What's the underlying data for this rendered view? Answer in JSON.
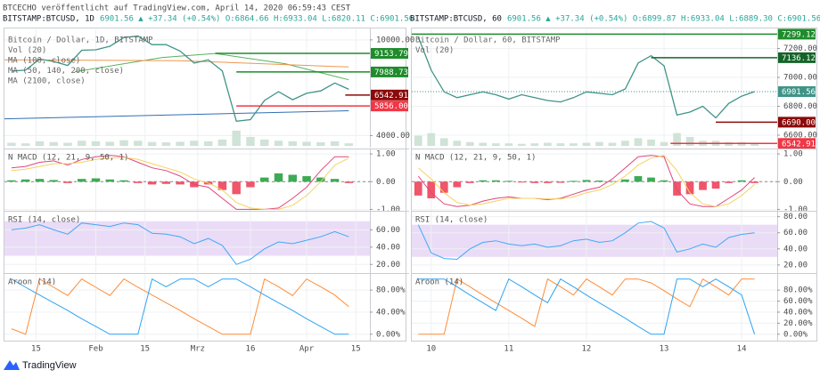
{
  "header": {
    "publisher": "BTCECHO veröffentlicht auf TradingView.com, April 14, 2020 06:59:43 CEST"
  },
  "footer": {
    "brand": "TradingView"
  },
  "chart_data": [
    {
      "type": "line",
      "title": "BITSTAMP:BTCUSD, 1D",
      "quote": "6901.56 ▲ +37.34 (+0.54%) O:6864.66 H:6933.04 L:6820.11 C:6901.56",
      "legend": [
        "Bitcoin / Dollar, 1D, BITSTAMP",
        "Vol (20)",
        "MA (100, close)",
        "MA (50, 140, 200, close)",
        "MA (2100, close)"
      ],
      "xlim": [
        0,
        104
      ],
      "x": [
        2,
        6,
        10,
        14,
        18,
        22,
        26,
        30,
        34,
        38,
        42,
        46,
        50,
        54,
        58,
        62,
        66,
        70,
        74,
        78,
        82,
        86,
        90,
        94,
        98
      ],
      "ylim": [
        3300,
        10550
      ],
      "yticks": [
        {
          "value": 10000,
          "label": "10000.00"
        },
        {
          "value": 4000,
          "label": "4000.00"
        }
      ],
      "series": [
        {
          "color": "#3f9488",
          "values": [
            8050,
            8100,
            8800,
            8650,
            8400,
            9350,
            9380,
            9600,
            10150,
            10250,
            9700,
            9700,
            9300,
            8550,
            8750,
            8050,
            4900,
            5000,
            6200,
            6750,
            6250,
            6650,
            6800,
            7300,
            6901.56
          ]
        }
      ],
      "volume": {
        "color": "#cfe3d6",
        "ylim": [
          0,
          100
        ],
        "values": [
          12,
          10,
          18,
          15,
          12,
          20,
          18,
          16,
          22,
          20,
          15,
          14,
          16,
          20,
          18,
          25,
          60,
          35,
          25,
          20,
          18,
          16,
          14,
          18,
          10
        ]
      },
      "ma": [
        {
          "color": "#2f6fb3",
          "x": [
            0,
            98
          ],
          "values": [
            5050,
            5560
          ]
        },
        {
          "color": "#58b05a",
          "x": [
            20,
            45,
            60,
            80,
            98
          ],
          "values": [
            8000,
            8900,
            9150,
            8500,
            7500
          ]
        },
        {
          "color": "#f0964c",
          "x": [
            0,
            50,
            98
          ],
          "values": [
            8750,
            8700,
            8300
          ]
        }
      ],
      "levels": [
        {
          "value": 9153.79,
          "color": "#1e8c2b",
          "from": 60
        },
        {
          "value": 7988.73,
          "color": "#1e8c2b",
          "from": 66
        },
        {
          "value": 6542.91,
          "color": "#8b0a0a",
          "from": 97
        },
        {
          "value": 5856,
          "label": "5856.00",
          "color": "#f23645",
          "from": 66
        }
      ]
    },
    {
      "type": "combo",
      "title": "N MACD (12, 21, 9, 50, 1)",
      "ylim": [
        -1.05,
        1.1
      ],
      "yticks": [
        {
          "value": 1,
          "label": "1.00"
        },
        {
          "value": 0,
          "label": "0.00"
        },
        {
          "value": -1,
          "label": "-1.00"
        }
      ],
      "histogram": {
        "up_color": "#3eaa55",
        "down_color": "#f0556a",
        "values": [
          0.05,
          0.08,
          0.1,
          0.06,
          -0.05,
          0.1,
          0.12,
          0.08,
          0.05,
          -0.05,
          -0.1,
          -0.08,
          -0.1,
          -0.2,
          -0.1,
          -0.3,
          -0.45,
          -0.2,
          0.15,
          0.3,
          0.25,
          0.2,
          0.15,
          0.1,
          -0.05
        ]
      },
      "series": [
        {
          "color": "#e0457b",
          "values": [
            0.5,
            0.55,
            0.7,
            0.75,
            0.6,
            0.8,
            0.9,
            0.95,
            0.9,
            0.7,
            0.5,
            0.4,
            0.2,
            -0.1,
            -0.2,
            -0.6,
            -1,
            -1,
            -1,
            -0.95,
            -0.6,
            -0.2,
            0.4,
            0.9,
            0.9
          ]
        },
        {
          "color": "#f5d262",
          "values": [
            0.4,
            0.45,
            0.55,
            0.65,
            0.65,
            0.7,
            0.8,
            0.85,
            0.88,
            0.8,
            0.65,
            0.5,
            0.35,
            0.1,
            -0.05,
            -0.3,
            -0.75,
            -0.95,
            -1,
            -1,
            -0.85,
            -0.5,
            0,
            0.6,
            0.85
          ]
        }
      ]
    },
    {
      "type": "line",
      "title": "RSI (14, close)",
      "ylim": [
        11,
        79
      ],
      "band": [
        30,
        70
      ],
      "band_color": "#eadcf7",
      "yticks": [
        {
          "value": 60,
          "label": "60.00"
        },
        {
          "value": 40,
          "label": "40.00"
        },
        {
          "value": 20,
          "label": "20.00"
        }
      ],
      "series": [
        {
          "color": "#3fa9f5",
          "values": [
            60,
            62,
            66,
            60,
            55,
            68,
            66,
            64,
            68,
            66,
            56,
            55,
            52,
            44,
            50,
            42,
            20,
            26,
            38,
            46,
            44,
            48,
            52,
            58,
            52
          ]
        }
      ]
    },
    {
      "type": "line",
      "title": "Aroon (14)",
      "ylim": [
        -10,
        106
      ],
      "yticks": [
        {
          "value": 80,
          "label": "80.00%"
        },
        {
          "value": 40,
          "label": "40.00%"
        },
        {
          "value": 0,
          "label": "0.00%"
        }
      ],
      "xticks": [
        {
          "value": 9,
          "label": "15"
        },
        {
          "value": 26,
          "label": "Feb"
        },
        {
          "value": 40,
          "label": "15"
        },
        {
          "value": 55,
          "label": "Mrz"
        },
        {
          "value": 70,
          "label": "16"
        },
        {
          "value": 86,
          "label": "Apr"
        },
        {
          "value": 100,
          "label": "15"
        }
      ],
      "series": [
        {
          "color": "#ff8c38",
          "values": [
            10,
            0,
            100,
            85,
            70,
            100,
            85,
            70,
            100,
            85,
            71,
            57,
            43,
            28,
            14,
            0,
            0,
            0,
            100,
            86,
            70,
            100,
            86,
            71,
            50
          ]
        },
        {
          "color": "#2ea3f2",
          "values": [
            100,
            85,
            71,
            57,
            43,
            28,
            14,
            0,
            0,
            0,
            100,
            86,
            100,
            100,
            86,
            100,
            100,
            86,
            71,
            57,
            43,
            28,
            14,
            0,
            0
          ]
        }
      ]
    },
    {
      "type": "line",
      "title": "BITSTAMP:BTCUSD, 60",
      "quote": "6901.56 ▲ +37.34 (+0.54%) O:6899.87 H:6933.04 L:6889.30 C:6901.56",
      "legend": [
        "Bitcoin / Dollar, 60, BITSTAMP",
        "Vol (20)"
      ],
      "xlim": [
        -6,
        107
      ],
      "x": [
        -4,
        0,
        4,
        8,
        12,
        16,
        20,
        24,
        28,
        32,
        36,
        40,
        44,
        48,
        52,
        56,
        60,
        64,
        68,
        72,
        76,
        80,
        84,
        88,
        92,
        96,
        100
      ],
      "ylim": [
        6520,
        7320
      ],
      "yticks": [
        {
          "value": 7200,
          "label": "7200.00"
        },
        {
          "value": 7000,
          "label": "7000.00"
        },
        {
          "value": 6800,
          "label": "6800.00"
        },
        {
          "value": 6600,
          "label": "6600.00"
        }
      ],
      "series": [
        {
          "color": "#3f9488",
          "values": [
            7280,
            7050,
            6900,
            6860,
            6880,
            6900,
            6880,
            6850,
            6880,
            6860,
            6840,
            6830,
            6860,
            6900,
            6890,
            6880,
            6920,
            7100,
            7150,
            7080,
            6740,
            6760,
            6800,
            6720,
            6820,
            6870,
            6901.56
          ]
        }
      ],
      "volume": {
        "color": "#cfe3d6",
        "ylim": [
          0,
          100
        ],
        "values": [
          40,
          50,
          30,
          20,
          15,
          12,
          10,
          10,
          8,
          10,
          12,
          10,
          10,
          12,
          15,
          12,
          20,
          30,
          25,
          15,
          50,
          35,
          20,
          20,
          15,
          15,
          10
        ]
      },
      "levels": [
        {
          "value": 7299.12,
          "color": "#1e8c2b",
          "from": -6
        },
        {
          "value": 7136.12,
          "color": "#14642a",
          "from": 68
        },
        {
          "value": 6901.56,
          "color": "#3f9488",
          "from": -6,
          "dashed": true
        },
        {
          "value": 6690,
          "label": "6690.00",
          "color": "#8b0a0a",
          "from": 88
        },
        {
          "value": 6542.91,
          "color": "#f23645",
          "from": 74
        }
      ]
    },
    {
      "type": "combo",
      "title": "N MACD (12, 21, 9, 50, 1)",
      "ylim": [
        -1.05,
        1.1
      ],
      "yticks": [
        {
          "value": 1,
          "label": "1.00"
        },
        {
          "value": 0,
          "label": "0.00"
        },
        {
          "value": -1,
          "label": "-1.00"
        }
      ],
      "histogram": {
        "up_color": "#3eaa55",
        "down_color": "#f0556a",
        "values": [
          -0.5,
          -0.6,
          -0.4,
          -0.2,
          -0.05,
          0.05,
          0.05,
          0.03,
          -0.03,
          -0.05,
          -0.05,
          -0.04,
          0.03,
          0.06,
          0.04,
          0.02,
          0.08,
          0.2,
          0.15,
          0.05,
          -0.5,
          -0.45,
          -0.3,
          -0.25,
          -0.05,
          0.05,
          -0.05
        ]
      },
      "series": [
        {
          "color": "#e0457b",
          "values": [
            0.2,
            -0.4,
            -0.8,
            -0.9,
            -0.85,
            -0.7,
            -0.6,
            -0.55,
            -0.6,
            -0.6,
            -0.65,
            -0.6,
            -0.45,
            -0.3,
            -0.2,
            0.1,
            0.5,
            0.9,
            0.95,
            0.9,
            -0.3,
            -0.8,
            -0.9,
            -0.9,
            -0.6,
            -0.3,
            0.15
          ]
        },
        {
          "color": "#f5d262",
          "values": [
            0.5,
            0.1,
            -0.4,
            -0.75,
            -0.85,
            -0.8,
            -0.7,
            -0.6,
            -0.6,
            -0.6,
            -0.62,
            -0.62,
            -0.55,
            -0.4,
            -0.3,
            -0.1,
            0.2,
            0.6,
            0.85,
            0.95,
            0.4,
            -0.4,
            -0.8,
            -0.9,
            -0.8,
            -0.5,
            -0.1
          ]
        }
      ]
    },
    {
      "type": "line",
      "title": "RSI (14, close)",
      "ylim": [
        11,
        84
      ],
      "band": [
        30,
        70
      ],
      "band_color": "#eadcf7",
      "yticks": [
        {
          "value": 80,
          "label": "80.00"
        },
        {
          "value": 60,
          "label": "60.00"
        },
        {
          "value": 40,
          "label": "40.00"
        },
        {
          "value": 20,
          "label": "20.00"
        }
      ],
      "series": [
        {
          "color": "#3fa9f5",
          "values": [
            70,
            35,
            28,
            27,
            40,
            48,
            50,
            46,
            44,
            46,
            42,
            44,
            50,
            52,
            48,
            50,
            60,
            72,
            74,
            66,
            36,
            40,
            46,
            42,
            54,
            58,
            60
          ]
        }
      ]
    },
    {
      "type": "line",
      "title": "Aroon (14)",
      "ylim": [
        -10,
        106
      ],
      "yticks": [
        {
          "value": 80,
          "label": "80.00%"
        },
        {
          "value": 60,
          "label": "60.00%"
        },
        {
          "value": 40,
          "label": "40.00%"
        },
        {
          "value": 20,
          "label": "20.00%"
        },
        {
          "value": 0,
          "label": "0.00%"
        }
      ],
      "xticks": [
        {
          "value": 0,
          "label": "10"
        },
        {
          "value": 24,
          "label": "11"
        },
        {
          "value": 48,
          "label": "12"
        },
        {
          "value": 72,
          "label": "13"
        },
        {
          "value": 96,
          "label": "14"
        }
      ],
      "series": [
        {
          "color": "#ff8c38",
          "values": [
            0,
            0,
            0,
            100,
            86,
            71,
            57,
            43,
            29,
            14,
            100,
            86,
            71,
            100,
            86,
            71,
            100,
            100,
            93,
            79,
            64,
            50,
            100,
            86,
            71,
            100,
            100
          ]
        },
        {
          "color": "#2ea3f2",
          "values": [
            100,
            100,
            100,
            86,
            71,
            57,
            43,
            100,
            86,
            71,
            57,
            100,
            86,
            71,
            57,
            43,
            29,
            14,
            0,
            0,
            100,
            100,
            86,
            100,
            86,
            71,
            0
          ]
        }
      ]
    }
  ]
}
